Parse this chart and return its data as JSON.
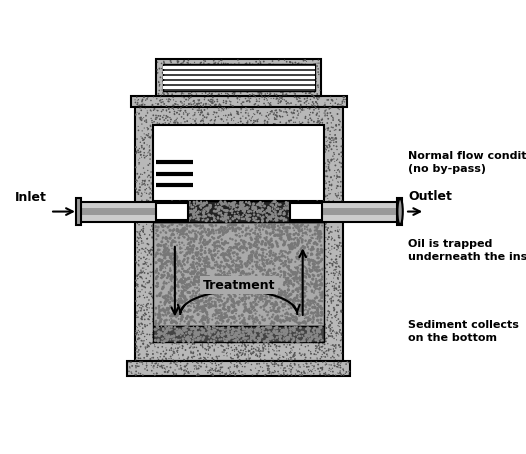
{
  "bg_color": "#ffffff",
  "concrete_color": "#b8b8b8",
  "dark_insert": "#333333",
  "treatment_fill": "#aaaaaa",
  "sediment_fill": "#555555",
  "pipe_fill": "#cccccc",
  "white_fill": "#ffffff",
  "title_text": "Normal flow conditions\n(no by-pass)",
  "inlet_text": "Inlet",
  "outlet_text": "Outlet",
  "treatment_text": "Treatment",
  "oil_text": "Oil is trapped\nunderneath the insert",
  "sediment_text": "Sediment collects\non the bottom",
  "figw": 5.26,
  "figh": 4.54,
  "dpi": 100
}
